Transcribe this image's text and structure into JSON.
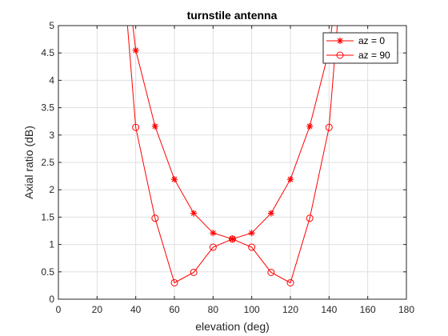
{
  "chart_data": {
    "type": "line",
    "title": "turnstile antenna",
    "xlabel": "elevation (deg)",
    "ylabel": "Axial ratio (dB)",
    "xlim": [
      0,
      180
    ],
    "ylim": [
      0,
      5
    ],
    "xticks": [
      0,
      20,
      40,
      60,
      80,
      100,
      120,
      140,
      160,
      180
    ],
    "yticks": [
      0,
      0.5,
      1,
      1.5,
      2,
      2.5,
      3,
      3.5,
      4,
      4.5,
      5
    ],
    "grid": true,
    "legend_position": "top-right",
    "line_color": "#ff0000",
    "series": [
      {
        "name": "az = 0",
        "marker": "asterisk",
        "x": [
          30,
          40,
          50,
          60,
          70,
          80,
          90,
          100,
          110,
          120,
          130,
          140,
          150
        ],
        "y": [
          7.5,
          4.55,
          3.16,
          2.19,
          1.57,
          1.21,
          1.1,
          1.21,
          1.57,
          2.19,
          3.16,
          4.55,
          7.5
        ]
      },
      {
        "name": "az = 90",
        "marker": "circle",
        "x": [
          30,
          40,
          50,
          60,
          70,
          80,
          90,
          100,
          110,
          120,
          130,
          140,
          150
        ],
        "y": [
          7.5,
          3.14,
          1.48,
          0.3,
          0.49,
          0.95,
          1.1,
          0.95,
          0.49,
          0.3,
          1.48,
          3.14,
          7.5
        ]
      }
    ]
  }
}
